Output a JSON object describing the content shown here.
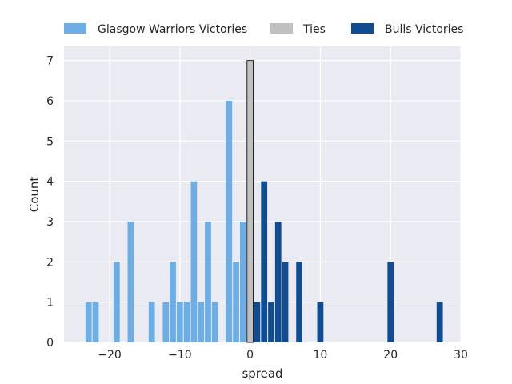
{
  "chart_data": {
    "type": "bar",
    "xlabel": "spread",
    "ylabel": "Count",
    "xlim": [
      -26.5,
      30
    ],
    "ylim": [
      0,
      7.35
    ],
    "xticks": [
      -20,
      -10,
      0,
      10,
      20,
      30
    ],
    "yticks": [
      0,
      1,
      2,
      3,
      4,
      5,
      6,
      7
    ],
    "grid": true,
    "legend_position": "top",
    "bin_width": 1,
    "series": [
      {
        "name": "Glasgow Warriors Victories",
        "color": "#6daee6",
        "x": [
          -23,
          -22,
          -19,
          -17,
          -14,
          -12,
          -11,
          -10,
          -9,
          -8,
          -7,
          -6,
          -5,
          -3,
          -2,
          -1
        ],
        "values": [
          1,
          1,
          2,
          3,
          1,
          1,
          2,
          1,
          1,
          4,
          1,
          3,
          1,
          6,
          2,
          3
        ]
      },
      {
        "name": "Ties",
        "color": "#c0c0c0",
        "x": [
          0
        ],
        "values": [
          7
        ]
      },
      {
        "name": "Bulls Victories",
        "color": "#0f4c92",
        "x": [
          1,
          2,
          3,
          4,
          5,
          7,
          10,
          20,
          27
        ],
        "values": [
          1,
          4,
          1,
          3,
          2,
          2,
          1,
          2,
          1
        ]
      }
    ]
  }
}
